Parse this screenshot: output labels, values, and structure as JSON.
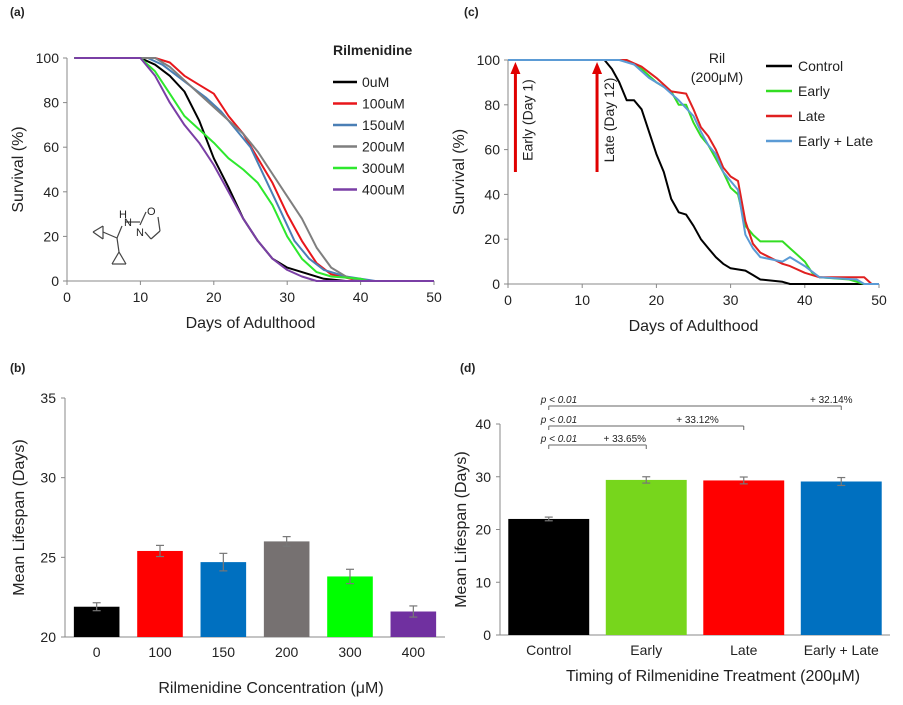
{
  "figure": {
    "panel_labels": [
      "(a)",
      "(b)",
      "(c)",
      "(d)"
    ]
  },
  "chart_data": [
    {
      "id": "a",
      "type": "line",
      "xlabel": "Days of Adulthood",
      "ylabel": "Survival (%)",
      "xlim": [
        0,
        50
      ],
      "ylim": [
        0,
        100
      ],
      "xticks": [
        0,
        10,
        20,
        30,
        40,
        50
      ],
      "yticks": [
        0,
        20,
        40,
        60,
        80,
        100
      ],
      "legend_title": "Rilmenidine",
      "legend_position": "top-right",
      "structure_labels": [
        "H",
        "N",
        "O",
        "N"
      ],
      "series": [
        {
          "name": "0uM",
          "color": "#000000",
          "points": [
            [
              1,
              100
            ],
            [
              10,
              100
            ],
            [
              12,
              97
            ],
            [
              14,
              92
            ],
            [
              16,
              85
            ],
            [
              18,
              72
            ],
            [
              20,
              55
            ],
            [
              22,
              42
            ],
            [
              24,
              28
            ],
            [
              26,
              18
            ],
            [
              28,
              10
            ],
            [
              30,
              6
            ],
            [
              32,
              4
            ],
            [
              35,
              1
            ],
            [
              38,
              0
            ],
            [
              50,
              0
            ]
          ]
        },
        {
          "name": "100uM",
          "color": "#e8161b",
          "points": [
            [
              1,
              100
            ],
            [
              12,
              100
            ],
            [
              14,
              98
            ],
            [
              16,
              92
            ],
            [
              18,
              88
            ],
            [
              20,
              84
            ],
            [
              22,
              74
            ],
            [
              24,
              66
            ],
            [
              26,
              55
            ],
            [
              28,
              44
            ],
            [
              30,
              30
            ],
            [
              32,
              18
            ],
            [
              34,
              8
            ],
            [
              36,
              3
            ],
            [
              40,
              0
            ],
            [
              50,
              0
            ]
          ]
        },
        {
          "name": "150uM",
          "color": "#4a7fb5",
          "points": [
            [
              1,
              100
            ],
            [
              11,
              100
            ],
            [
              13,
              97
            ],
            [
              15,
              92
            ],
            [
              17,
              87
            ],
            [
              19,
              82
            ],
            [
              21,
              76
            ],
            [
              23,
              68
            ],
            [
              25,
              60
            ],
            [
              27,
              46
            ],
            [
              29,
              32
            ],
            [
              31,
              18
            ],
            [
              33,
              10
            ],
            [
              35,
              5
            ],
            [
              38,
              2
            ],
            [
              42,
              0
            ],
            [
              50,
              0
            ]
          ]
        },
        {
          "name": "200uM",
          "color": "#7f7f7f",
          "points": [
            [
              1,
              100
            ],
            [
              12,
              100
            ],
            [
              14,
              96
            ],
            [
              16,
              90
            ],
            [
              18,
              84
            ],
            [
              20,
              78
            ],
            [
              22,
              72
            ],
            [
              24,
              66
            ],
            [
              26,
              58
            ],
            [
              28,
              48
            ],
            [
              30,
              38
            ],
            [
              32,
              28
            ],
            [
              34,
              15
            ],
            [
              36,
              6
            ],
            [
              38,
              2
            ],
            [
              40,
              0
            ],
            [
              50,
              0
            ]
          ]
        },
        {
          "name": "300uM",
          "color": "#2ee82e",
          "points": [
            [
              1,
              100
            ],
            [
              10,
              100
            ],
            [
              12,
              94
            ],
            [
              14,
              84
            ],
            [
              16,
              74
            ],
            [
              18,
              68
            ],
            [
              20,
              62
            ],
            [
              22,
              55
            ],
            [
              24,
              50
            ],
            [
              26,
              44
            ],
            [
              28,
              34
            ],
            [
              30,
              20
            ],
            [
              32,
              10
            ],
            [
              34,
              4
            ],
            [
              36,
              2
            ],
            [
              40,
              1
            ],
            [
              41,
              0
            ],
            [
              50,
              0
            ]
          ]
        },
        {
          "name": "400uM",
          "color": "#7a3fa5",
          "points": [
            [
              1,
              100
            ],
            [
              10,
              100
            ],
            [
              12,
              92
            ],
            [
              14,
              80
            ],
            [
              16,
              70
            ],
            [
              18,
              62
            ],
            [
              20,
              52
            ],
            [
              22,
              40
            ],
            [
              24,
              28
            ],
            [
              26,
              18
            ],
            [
              28,
              10
            ],
            [
              30,
              5
            ],
            [
              32,
              2
            ],
            [
              34,
              0
            ],
            [
              50,
              0
            ]
          ]
        }
      ]
    },
    {
      "id": "b",
      "type": "bar",
      "xlabel": "Rilmenidine Concentration (μM)",
      "ylabel": "Mean Lifespan (Days)",
      "ylim": [
        20,
        35
      ],
      "yticks": [
        20,
        25,
        30,
        35
      ],
      "categories": [
        "0",
        "100",
        "150",
        "200",
        "300",
        "400"
      ],
      "values": [
        21.9,
        25.4,
        24.7,
        26.0,
        23.8,
        21.6
      ],
      "errors": [
        0.25,
        0.35,
        0.55,
        0.3,
        0.45,
        0.35
      ],
      "colors": [
        "#000000",
        "#ff0000",
        "#0070c0",
        "#767171",
        "#00ff00",
        "#7030a0"
      ]
    },
    {
      "id": "c",
      "type": "line",
      "xlabel": "Days of Adulthood",
      "ylabel": "Survival (%)",
      "xlim": [
        0,
        50
      ],
      "ylim": [
        0,
        100
      ],
      "xticks": [
        0,
        10,
        20,
        30,
        40,
        50
      ],
      "yticks": [
        0,
        20,
        40,
        60,
        80,
        100
      ],
      "legend_title": "Ril (200μM)",
      "legend_position": "top-right",
      "annotations": [
        {
          "text": "Early (Day 1)",
          "x": 1
        },
        {
          "text": "Late (Day 12)",
          "x": 12
        }
      ],
      "series": [
        {
          "name": "Control",
          "color": "#000000",
          "points": [
            [
              0,
              100
            ],
            [
              13,
              100
            ],
            [
              14,
              96
            ],
            [
              15,
              90
            ],
            [
              16,
              82
            ],
            [
              17,
              82
            ],
            [
              18,
              78
            ],
            [
              19,
              68
            ],
            [
              20,
              58
            ],
            [
              21,
              50
            ],
            [
              22,
              38
            ],
            [
              23,
              32
            ],
            [
              24,
              31
            ],
            [
              25,
              26
            ],
            [
              26,
              20
            ],
            [
              27,
              16
            ],
            [
              28,
              12
            ],
            [
              29,
              9
            ],
            [
              30,
              7
            ],
            [
              32,
              6
            ],
            [
              33,
              4
            ],
            [
              34,
              2
            ],
            [
              37,
              1
            ],
            [
              38,
              0
            ],
            [
              50,
              0
            ]
          ]
        },
        {
          "name": "Early",
          "color": "#33dd22",
          "points": [
            [
              0,
              100
            ],
            [
              16,
              100
            ],
            [
              18,
              96
            ],
            [
              20,
              90
            ],
            [
              22,
              86
            ],
            [
              23,
              80
            ],
            [
              24,
              80
            ],
            [
              25,
              72
            ],
            [
              26,
              66
            ],
            [
              27,
              62
            ],
            [
              28,
              56
            ],
            [
              29,
              50
            ],
            [
              30,
              43
            ],
            [
              31,
              40
            ],
            [
              32,
              26
            ],
            [
              33,
              22
            ],
            [
              34,
              19
            ],
            [
              37,
              19
            ],
            [
              38,
              16
            ],
            [
              40,
              10
            ],
            [
              41,
              5
            ],
            [
              42,
              3
            ],
            [
              46,
              2
            ],
            [
              48,
              0
            ],
            [
              50,
              0
            ]
          ]
        },
        {
          "name": "Late",
          "color": "#e02020",
          "points": [
            [
              0,
              100
            ],
            [
              16,
              100
            ],
            [
              18,
              97
            ],
            [
              20,
              92
            ],
            [
              22,
              86
            ],
            [
              24,
              85
            ],
            [
              25,
              78
            ],
            [
              26,
              70
            ],
            [
              27,
              66
            ],
            [
              28,
              60
            ],
            [
              29,
              52
            ],
            [
              30,
              48
            ],
            [
              31,
              46
            ],
            [
              32,
              28
            ],
            [
              33,
              18
            ],
            [
              34,
              14
            ],
            [
              37,
              9
            ],
            [
              38,
              8
            ],
            [
              40,
              5
            ],
            [
              42,
              3
            ],
            [
              48,
              3
            ],
            [
              49,
              0
            ],
            [
              50,
              0
            ]
          ]
        },
        {
          "name": "Early + Late",
          "color": "#5b9bd5",
          "points": [
            [
              0,
              100
            ],
            [
              15,
              100
            ],
            [
              17,
              98
            ],
            [
              19,
              92
            ],
            [
              21,
              88
            ],
            [
              23,
              82
            ],
            [
              25,
              75
            ],
            [
              26,
              68
            ],
            [
              27,
              62
            ],
            [
              28,
              58
            ],
            [
              29,
              50
            ],
            [
              30,
              46
            ],
            [
              31,
              42
            ],
            [
              32,
              22
            ],
            [
              33,
              16
            ],
            [
              34,
              12
            ],
            [
              37,
              10
            ],
            [
              38,
              12
            ],
            [
              40,
              8
            ],
            [
              42,
              3
            ],
            [
              47,
              2
            ],
            [
              48,
              0
            ],
            [
              50,
              0
            ]
          ]
        }
      ]
    },
    {
      "id": "d",
      "type": "bar",
      "xlabel": "Timing of Rilmenidine Treatment (200μM)",
      "ylabel": "Mean Lifespan (Days)",
      "ylim": [
        0,
        40
      ],
      "yticks": [
        0,
        10,
        20,
        30,
        40
      ],
      "categories": [
        "Control",
        "Early",
        "Late",
        "Early + Late"
      ],
      "values": [
        22.0,
        29.4,
        29.3,
        29.1
      ],
      "errors": [
        0.35,
        0.6,
        0.65,
        0.75
      ],
      "colors": [
        "#000000",
        "#77d61c",
        "#ff0000",
        "#0070c0"
      ],
      "comparisons": [
        {
          "to": 1,
          "p": "p < 0.01",
          "change": "+ 33.65%"
        },
        {
          "to": 2,
          "p": "p < 0.01",
          "change": "+ 33.12%"
        },
        {
          "to": 3,
          "p": "p < 0.01",
          "change": "+ 32.14%"
        }
      ]
    }
  ]
}
